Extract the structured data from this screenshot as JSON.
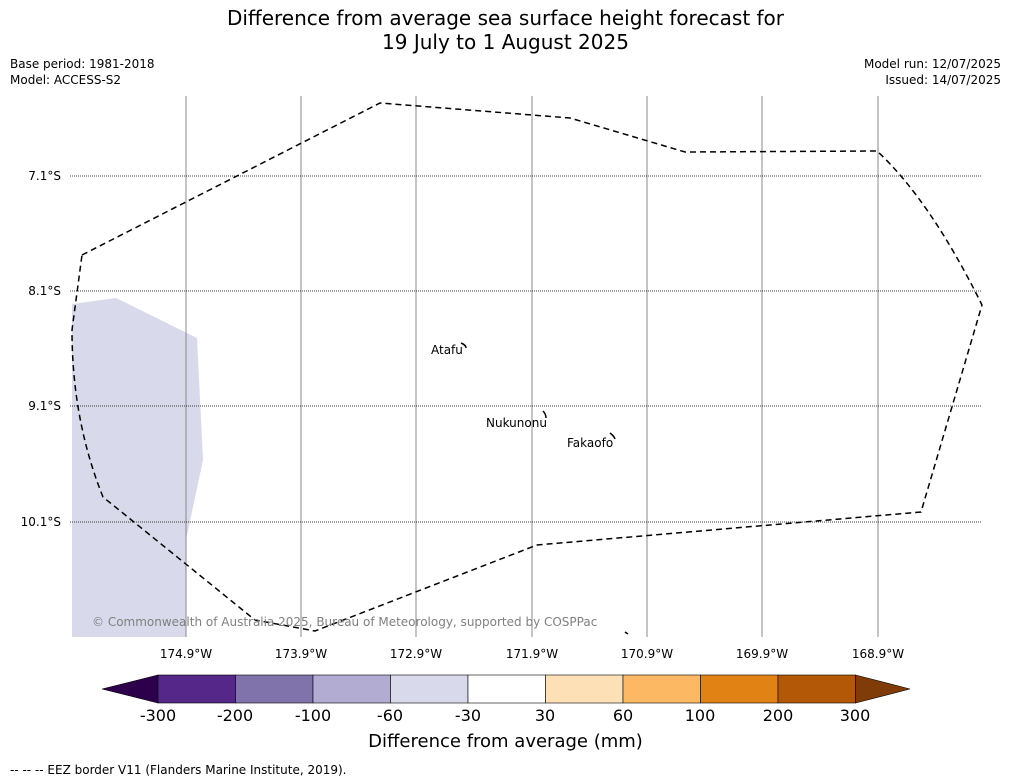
{
  "title_line1": "Difference from average sea surface height forecast for",
  "title_line2": "19 July to 1 August 2025",
  "base_period": "Base period: 1981-2018",
  "model": "Model: ACCESS-S2",
  "model_run": "Model run: 12/07/2025",
  "issued": "Issued: 14/07/2025",
  "lat_labels": [
    "7.1°S",
    "8.1°S",
    "9.1°S",
    "10.1°S"
  ],
  "lon_labels": [
    "174.9°W",
    "173.9°W",
    "172.9°W",
    "171.9°W",
    "170.9°W",
    "169.9°W",
    "168.9°W"
  ],
  "places": [
    {
      "name": "Atafu"
    },
    {
      "name": "Nukunonu"
    },
    {
      "name": "Fakaofo"
    }
  ],
  "copyright": "© Commonwealth of Australia 2025, Bureau of Meteorology, supported by COSPPac",
  "colorbar": {
    "ticks": [
      "-300",
      "-200",
      "-100",
      "-60",
      "-30",
      "30",
      "60",
      "100",
      "200",
      "300"
    ],
    "colors": [
      "#2d004b",
      "#542788",
      "#8073ac",
      "#b2abd2",
      "#d8daeb",
      "#ffffff",
      "#fee0b6",
      "#fdb863",
      "#e08214",
      "#b35806",
      "#7f3b08"
    ],
    "label": "Difference from average (mm)"
  },
  "footer": "--  --  -- EEZ border V11 (Flanders Marine Institute, 2019)."
}
